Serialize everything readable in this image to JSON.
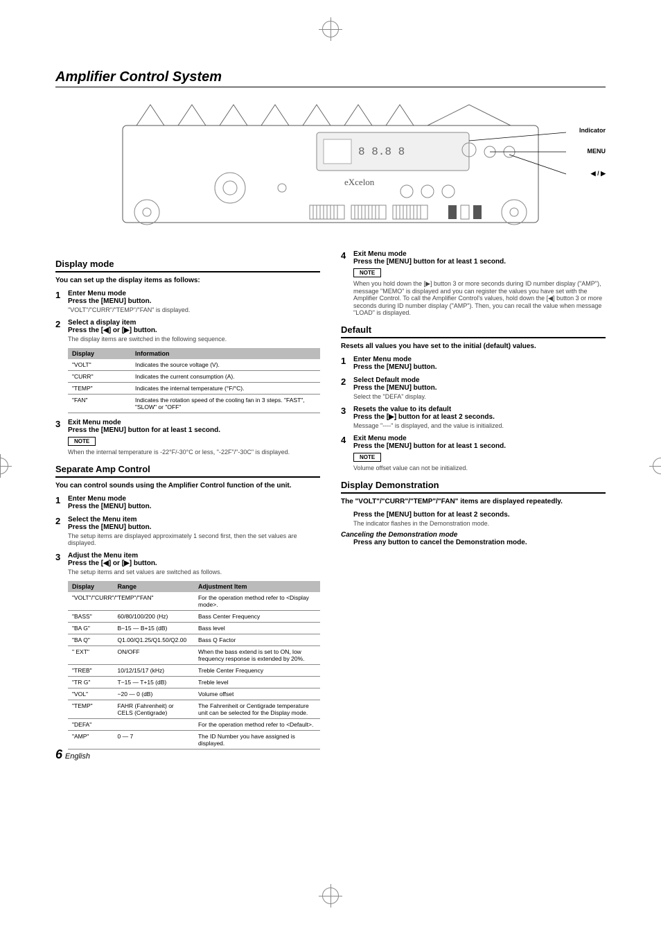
{
  "page": {
    "title": "Amplifier Control System",
    "page_number": "6",
    "language_label": "English"
  },
  "diagram_labels": {
    "indicator": "Indicator",
    "menu": "MENU",
    "arrows": "◀ / ▶",
    "brand": "eXcelon"
  },
  "left": {
    "display_mode": {
      "header": "Display mode",
      "intro": "You can set up the display items as follows:",
      "steps": [
        {
          "num": "1",
          "title": "Enter Menu mode",
          "action": "Press the [MENU] button.",
          "desc": "\"VOLT\"/\"CURR\"/\"TEMP\"/\"FAN\" is displayed."
        },
        {
          "num": "2",
          "title": "Select a display item",
          "action": "Press the [◀] or [▶] button.",
          "desc": "The display items are switched in the following sequence."
        }
      ],
      "table1": {
        "headers": [
          "Display",
          "Information"
        ],
        "rows": [
          [
            "\"VOLT\"",
            "Indicates the source voltage (V)."
          ],
          [
            "\"CURR\"",
            "Indicates the current consumption (A)."
          ],
          [
            "\"TEMP\"",
            "Indicates the internal temperature (°F/°C)."
          ],
          [
            "\"FAN\"",
            "Indicates the rotation speed of the cooling fan in 3 steps. \"FAST\", \"SLOW\" or \"OFF\""
          ]
        ]
      },
      "step3": {
        "num": "3",
        "title": "Exit Menu mode",
        "action": "Press the [MENU] button for at least 1 second."
      },
      "note_label": "NOTE",
      "note_text": "When the internal temperature is -22°F/-30°C or less, \"-22F\"/\"-30C\" is displayed."
    },
    "separate_amp": {
      "header": "Separate Amp Control",
      "intro": "You can control sounds using the Amplifier Control function of the unit.",
      "steps": [
        {
          "num": "1",
          "title": "Enter Menu mode",
          "action": "Press the [MENU] button."
        },
        {
          "num": "2",
          "title": "Select the Menu item",
          "action": "Press the [MENU] button.",
          "desc": "The setup items are displayed approximately 1 second first, then the set values are displayed."
        },
        {
          "num": "3",
          "title": "Adjust the Menu item",
          "action": "Press the [◀] or [▶] button.",
          "desc": "The setup items and set values are switched as follows."
        }
      ],
      "table2": {
        "headers": [
          "Display",
          "Range",
          "Adjustment Item"
        ],
        "rows": [
          [
            "\"VOLT\"/\"CURR\"/\"TEMP\"/\"FAN\"",
            "",
            "For the operation method refer to <Display mode>."
          ],
          [
            "\"BASS\"",
            "60/80/100/200 (Hz)",
            "Bass Center Frequency"
          ],
          [
            "\"BA G\"",
            "B−15 — B+15 (dB)",
            "Bass level"
          ],
          [
            "\"BA Q\"",
            "Q1.00/Q1.25/Q1.50/Q2.00",
            "Bass Q Factor"
          ],
          [
            "\" EXT\"",
            "ON/OFF",
            "When the bass extend is set to ON, low frequency response is extended by 20%."
          ],
          [
            "\"TREB\"",
            "10/12/15/17 (kHz)",
            "Treble Center Frequency"
          ],
          [
            "\"TR G\"",
            "T−15 — T+15 (dB)",
            "Treble level"
          ],
          [
            "\"VOL\"",
            "−20 — 0 (dB)",
            "Volume offset"
          ],
          [
            "\"TEMP\"",
            "FAHR (Fahrenheit) or CELS (Centigrade)",
            "The Fahrenheit or Centigrade temperature unit can be selected for the Display mode."
          ],
          [
            "\"DEFA\"",
            "",
            "For the operation method refer to <Default>."
          ],
          [
            "\"AMP\"",
            "0 — 7",
            "The ID Number you have assigned is displayed."
          ]
        ]
      }
    }
  },
  "right": {
    "step4": {
      "num": "4",
      "title": "Exit Menu mode",
      "action": "Press the [MENU] button for at least 1 second.",
      "note_label": "NOTE",
      "note_text": "When you hold down the [▶] button 3 or more seconds during ID number display (\"AMP\"), message \"MEMO\" is displayed and you can register the values you have set with the Amplifier Control. To call the Amplifier Control's values, hold down the [◀] button 3 or more seconds during ID number display (\"AMP\"). Then, you can recall the value when message \"LOAD\" is displayed."
    },
    "default": {
      "header": "Default",
      "intro": "Resets all values you have set to the initial (default) values.",
      "steps": [
        {
          "num": "1",
          "title": "Enter Menu mode",
          "action": "Press the [MENU] button."
        },
        {
          "num": "2",
          "title": "Select Default mode",
          "action": "Press the [MENU] button.",
          "desc": "Select the \"DEFA\" display."
        },
        {
          "num": "3",
          "title": "Resets the value to its default",
          "action": "Press the [▶] button for at least 2 seconds.",
          "desc": "Message \"----\" is displayed, and the value is initialized."
        },
        {
          "num": "4",
          "title": "Exit Menu mode",
          "action": "Press the [MENU] button for at least 1 second."
        }
      ],
      "note_label": "NOTE",
      "note_text": "Volume offset value can not be initialized."
    },
    "demo": {
      "header": "Display Demonstration",
      "intro": "The \"VOLT\"/\"CURR\"/\"TEMP\"/\"FAN\" items are displayed repeatedly.",
      "action1": "Press the [MENU] button for at least 2 seconds.",
      "desc1": "The indicator flashes in the Demonstration mode.",
      "cancel_title": "Canceling the Demonstration mode",
      "cancel_action": "Press any button to cancel the Demonstration mode."
    }
  },
  "colors": {
    "text": "#000000",
    "muted": "#555555",
    "table_header_bg": "#bbbbbb",
    "border": "#000000"
  }
}
